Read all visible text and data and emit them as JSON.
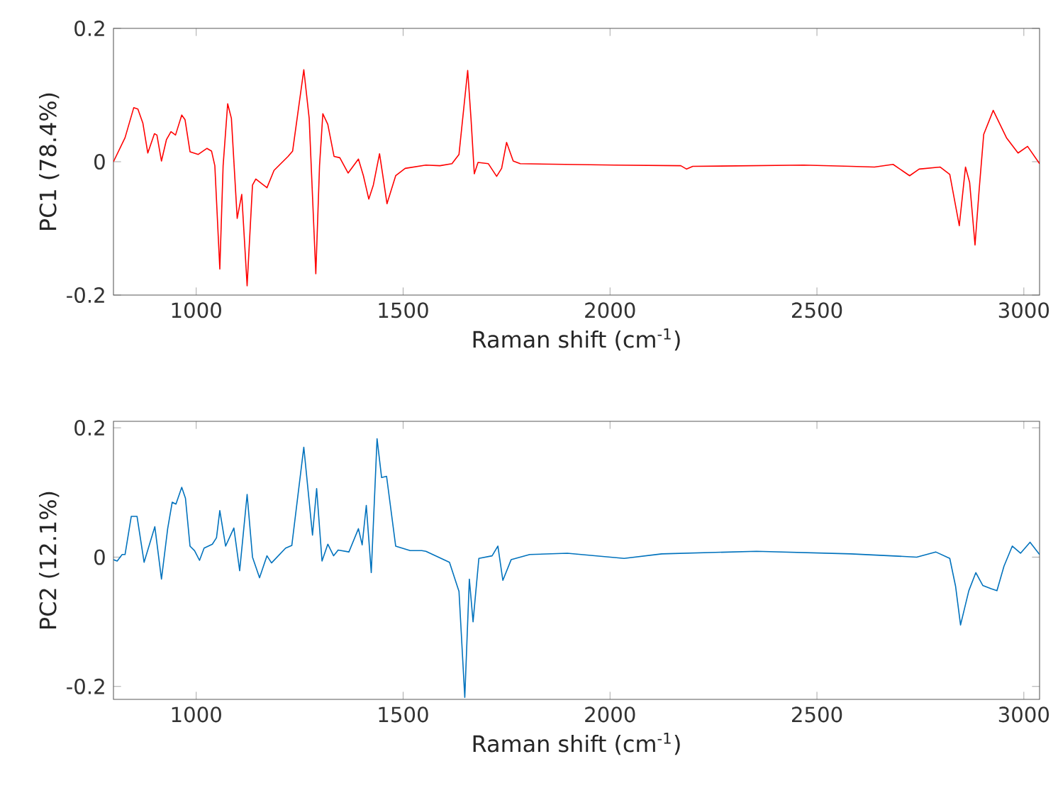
{
  "chart_data": [
    {
      "type": "line",
      "xlabel": "Raman shift (cm$^{-1}$)",
      "ylabel": "PC1 (78.4%)",
      "xlim": [
        800,
        3038
      ],
      "ylim": [
        -0.2,
        0.2
      ],
      "xticks": [
        1000,
        1500,
        2000,
        2500,
        3000
      ],
      "yticks": [
        -0.2,
        0,
        0.2
      ],
      "series": [
        {
          "color": "#ff0000",
          "x": [
            800,
            828,
            849,
            859,
            871,
            883,
            899,
            905,
            916,
            928,
            939,
            950,
            965,
            973,
            985,
            1005,
            1026,
            1037,
            1045,
            1057,
            1065,
            1076,
            1085,
            1099,
            1110,
            1123,
            1136,
            1144,
            1171,
            1188,
            1222,
            1233,
            1260,
            1273,
            1289,
            1298,
            1306,
            1318,
            1333,
            1347,
            1367,
            1392,
            1404,
            1417,
            1428,
            1443,
            1451,
            1461,
            1482,
            1505,
            1555,
            1589,
            1618,
            1635,
            1656,
            1664,
            1672,
            1681,
            1706,
            1726,
            1738,
            1750,
            1766,
            1783,
            2011,
            2171,
            2185,
            2200,
            2468,
            2582,
            2639,
            2684,
            2724,
            2747,
            2798,
            2821,
            2844,
            2859,
            2869,
            2882,
            2892,
            2903,
            2926,
            2958,
            2986,
            3009,
            3038
          ],
          "values": [
            0,
            0.036,
            0.081,
            0.079,
            0.058,
            0.013,
            0.042,
            0.04,
            0.001,
            0.033,
            0.045,
            0.04,
            0.07,
            0.063,
            0.015,
            0.011,
            0.02,
            0.016,
            -0.006,
            -0.161,
            -0.006,
            0.087,
            0.065,
            -0.085,
            -0.049,
            -0.186,
            -0.035,
            -0.026,
            -0.039,
            -0.013,
            0.008,
            0.016,
            0.138,
            0.065,
            -0.168,
            -0.006,
            0.072,
            0.056,
            0.008,
            0.006,
            -0.017,
            0.004,
            -0.021,
            -0.056,
            -0.035,
            0.012,
            -0.021,
            -0.063,
            -0.021,
            -0.01,
            -0.005,
            -0.006,
            -0.003,
            0.011,
            0.137,
            0.065,
            -0.018,
            -0.001,
            -0.003,
            -0.022,
            -0.01,
            0.029,
            0.001,
            -0.003,
            -0.005,
            -0.006,
            -0.011,
            -0.007,
            -0.005,
            -0.007,
            -0.008,
            -0.004,
            -0.021,
            -0.011,
            -0.008,
            -0.019,
            -0.096,
            -0.008,
            -0.031,
            -0.125,
            -0.042,
            0.041,
            0.077,
            0.036,
            0.013,
            0.023,
            -0.003
          ]
        }
      ]
    },
    {
      "type": "line",
      "xlabel": "Raman shift (cm$^{-1}$)",
      "ylabel": "PC2 (12.1%)",
      "xlim": [
        800,
        3038
      ],
      "ylim": [
        -0.22,
        0.21
      ],
      "xticks": [
        1000,
        1500,
        2000,
        2500,
        3000
      ],
      "yticks": [
        -0.2,
        0,
        0.2
      ],
      "series": [
        {
          "color": "#0072bd",
          "x": [
            800,
            809,
            821,
            828,
            843,
            857,
            874,
            900,
            916,
            931,
            942,
            951,
            965,
            974,
            985,
            996,
            1008,
            1019,
            1039,
            1049,
            1057,
            1071,
            1091,
            1105,
            1123,
            1136,
            1153,
            1171,
            1182,
            1216,
            1231,
            1260,
            1281,
            1291,
            1304,
            1318,
            1332,
            1343,
            1369,
            1392,
            1401,
            1411,
            1423,
            1437,
            1448,
            1460,
            1482,
            1517,
            1545,
            1555,
            1612,
            1635,
            1649,
            1660,
            1669,
            1683,
            1715,
            1729,
            1741,
            1761,
            1806,
            1897,
            2034,
            2125,
            2354,
            2582,
            2741,
            2787,
            2821,
            2835,
            2847,
            2867,
            2884,
            2901,
            2921,
            2935,
            2952,
            2972,
            2992,
            3015,
            3038
          ],
          "values": [
            -0.004,
            -0.006,
            0.004,
            0.004,
            0.063,
            0.063,
            -0.008,
            0.047,
            -0.034,
            0.044,
            0.085,
            0.082,
            0.108,
            0.091,
            0.017,
            0.01,
            -0.005,
            0.014,
            0.02,
            0.03,
            0.072,
            0.017,
            0.045,
            -0.021,
            0.097,
            0,
            -0.032,
            0.002,
            -0.009,
            0.014,
            0.018,
            0.17,
            0.034,
            0.106,
            -0.006,
            0.02,
            0.002,
            0.011,
            0.008,
            0.044,
            0.019,
            0.08,
            -0.024,
            0.183,
            0.123,
            0.125,
            0.017,
            0.01,
            0.01,
            0.009,
            -0.008,
            -0.053,
            -0.217,
            -0.034,
            -0.1,
            -0.002,
            0.002,
            0.017,
            -0.036,
            -0.004,
            0.004,
            0.006,
            -0.002,
            0.005,
            0.009,
            0.005,
            0,
            0.008,
            -0.002,
            -0.045,
            -0.105,
            -0.052,
            -0.024,
            -0.044,
            -0.049,
            -0.052,
            -0.014,
            0.017,
            0.006,
            0.023,
            0.004
          ]
        }
      ]
    }
  ]
}
